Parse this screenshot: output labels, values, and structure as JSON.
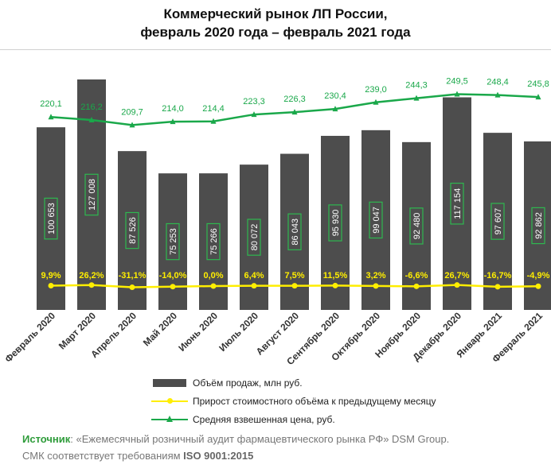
{
  "title_line1": "Коммерческий рынок ЛП России,",
  "title_line2": "февраль 2020 года – февраль 2021 года",
  "chart_data": {
    "type": "bar",
    "categories": [
      "Февраль 2020",
      "Март 2020",
      "Апрель 2020",
      "Май 2020",
      "Июнь 2020",
      "Июль 2020",
      "Август 2020",
      "Сентябрь 2020",
      "Октябрь 2020",
      "Ноябрь 2020",
      "Декабрь 2020",
      "Январь 2021",
      "Февраль 2021"
    ],
    "series": [
      {
        "name": "Объём продаж, млн руб.",
        "type": "bar",
        "color": "#4d4d4d",
        "values": [
          100653,
          127008,
          87526,
          75253,
          75266,
          80072,
          86043,
          95930,
          99047,
          92480,
          117154,
          97607,
          92862
        ],
        "labels": [
          "100 653",
          "127 008",
          "87 526",
          "75 253",
          "75 266",
          "80 072",
          "86 043",
          "95 930",
          "99 047",
          "92 480",
          "117 154",
          "97 607",
          "92 862"
        ]
      },
      {
        "name": "Прирост стоимостного объёма к предыдущему месяцу",
        "type": "line",
        "color": "#ffee00",
        "values": [
          9.9,
          26.2,
          -31.1,
          -14.0,
          0.0,
          6.4,
          7.5,
          11.5,
          3.2,
          -6.6,
          26.7,
          -16.7,
          -4.9
        ],
        "labels": [
          "9,9%",
          "26,2%",
          "-31,1%",
          "-14,0%",
          "0,0%",
          "6,4%",
          "7,5%",
          "11,5%",
          "3,2%",
          "-6,6%",
          "26,7%",
          "-16,7%",
          "-4,9%"
        ]
      },
      {
        "name": "Средняя взвешенная цена, руб.",
        "type": "line",
        "color": "#1aa84a",
        "values": [
          220.1,
          216.2,
          209.7,
          214.0,
          214.4,
          223.3,
          226.3,
          230.4,
          239.0,
          244.3,
          249.5,
          248.4,
          245.8
        ],
        "labels": [
          "220,1",
          "216,2",
          "209,7",
          "214,0",
          "214,4",
          "223,3",
          "226,3",
          "230,4",
          "239,0",
          "244,3",
          "249,5",
          "248,4",
          "245,8"
        ]
      }
    ],
    "legend_position": "bottom",
    "grid": false
  },
  "legend": {
    "bars": "Объём продаж, млн руб.",
    "growth": "Прирост стоимостного объёма к предыдущему месяцу",
    "price": "Средняя взвешенная цена, руб."
  },
  "source": {
    "label": "Источник",
    "text": ": «Ежемесячный розничный аудит фармацевтического рынка РФ» DSM Group.",
    "line2": "СМК соответствует требованиям ",
    "iso": "ISO 9001:2015"
  }
}
